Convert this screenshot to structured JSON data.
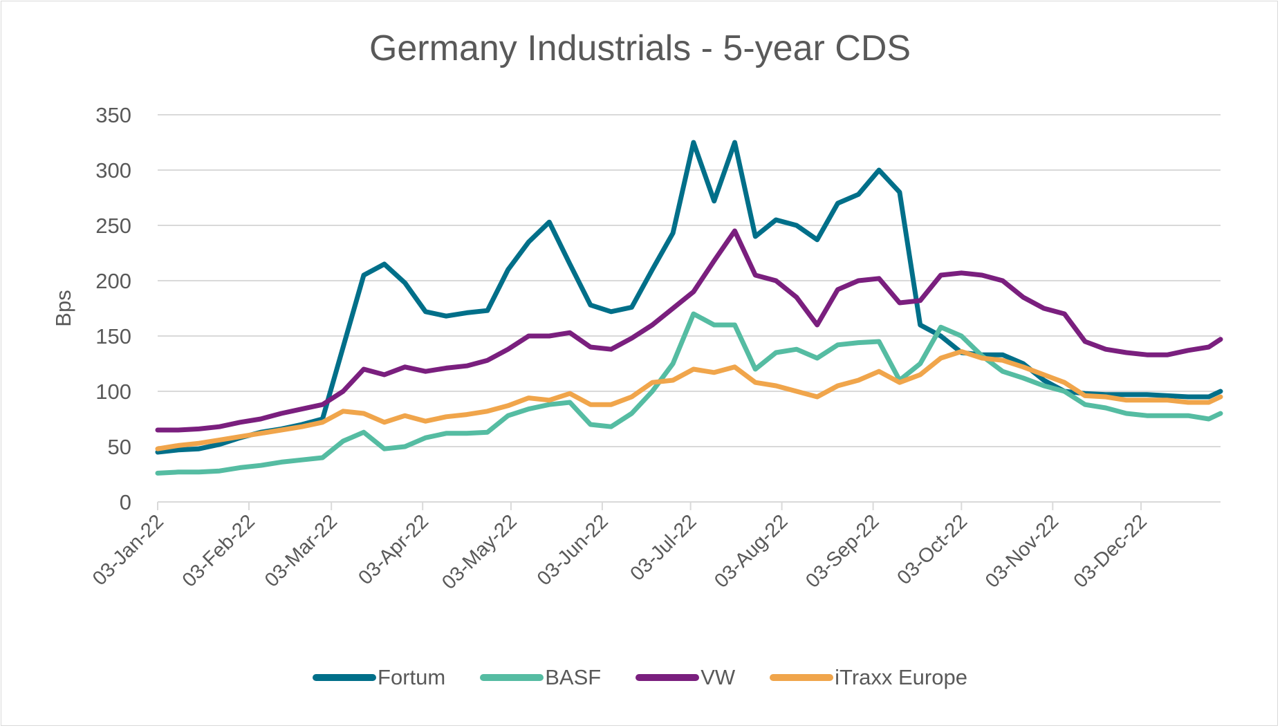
{
  "chart_data": {
    "type": "line",
    "title": "Germany Industrials - 5-year CDS",
    "xlabel": "",
    "ylabel": "Bps",
    "ylim": [
      0,
      350
    ],
    "yticks": [
      0,
      50,
      100,
      150,
      200,
      250,
      300,
      350
    ],
    "grid": true,
    "legend_position": "bottom",
    "xtick_labels": [
      "03-Jan-22",
      "03-Feb-22",
      "03-Mar-22",
      "03-Apr-22",
      "03-May-22",
      "03-Jun-22",
      "03-Jul-22",
      "03-Aug-22",
      "03-Sep-22",
      "03-Oct-22",
      "03-Nov-22",
      "03-Dec-22"
    ],
    "x": [
      "03-Jan-22",
      "10-Jan-22",
      "17-Jan-22",
      "24-Jan-22",
      "31-Jan-22",
      "07-Feb-22",
      "14-Feb-22",
      "21-Feb-22",
      "28-Feb-22",
      "07-Mar-22",
      "14-Mar-22",
      "21-Mar-22",
      "28-Mar-22",
      "04-Apr-22",
      "11-Apr-22",
      "18-Apr-22",
      "25-Apr-22",
      "02-May-22",
      "09-May-22",
      "16-May-22",
      "23-May-22",
      "30-May-22",
      "06-Jun-22",
      "13-Jun-22",
      "20-Jun-22",
      "27-Jun-22",
      "04-Jul-22",
      "11-Jul-22",
      "18-Jul-22",
      "25-Jul-22",
      "01-Aug-22",
      "08-Aug-22",
      "15-Aug-22",
      "22-Aug-22",
      "29-Aug-22",
      "05-Sep-22",
      "12-Sep-22",
      "19-Sep-22",
      "26-Sep-22",
      "03-Oct-22",
      "10-Oct-22",
      "17-Oct-22",
      "24-Oct-22",
      "31-Oct-22",
      "07-Nov-22",
      "14-Nov-22",
      "21-Nov-22",
      "28-Nov-22",
      "05-Dec-22",
      "12-Dec-22",
      "19-Dec-22",
      "26-Dec-22",
      "30-Dec-22"
    ],
    "series": [
      {
        "name": "Fortum",
        "color": "#006f89",
        "values": [
          45,
          47,
          48,
          52,
          58,
          63,
          66,
          70,
          75,
          140,
          205,
          215,
          198,
          172,
          168,
          171,
          173,
          210,
          235,
          253,
          215,
          178,
          172,
          176,
          210,
          243,
          325,
          272,
          325,
          240,
          255,
          250,
          237,
          270,
          278,
          300,
          280,
          160,
          150,
          135,
          133,
          133,
          125,
          110,
          100,
          98,
          97,
          97,
          97,
          96,
          95,
          95,
          100
        ]
      },
      {
        "name": "BASF",
        "color": "#55bca2",
        "values": [
          26,
          27,
          27,
          28,
          31,
          33,
          36,
          38,
          40,
          55,
          63,
          48,
          50,
          58,
          62,
          62,
          63,
          78,
          84,
          88,
          90,
          70,
          68,
          80,
          100,
          125,
          170,
          160,
          160,
          120,
          135,
          138,
          130,
          142,
          144,
          145,
          110,
          125,
          158,
          150,
          132,
          118,
          112,
          105,
          100,
          88,
          85,
          80,
          78,
          78,
          78,
          75,
          80
        ]
      },
      {
        "name": "VW",
        "color": "#7a1f7e",
        "values": [
          65,
          65,
          66,
          68,
          72,
          75,
          80,
          84,
          88,
          100,
          120,
          115,
          122,
          118,
          121,
          123,
          128,
          138,
          150,
          150,
          153,
          140,
          138,
          148,
          160,
          175,
          190,
          218,
          245,
          205,
          200,
          185,
          160,
          192,
          200,
          202,
          180,
          182,
          205,
          207,
          205,
          200,
          185,
          175,
          170,
          145,
          138,
          135,
          133,
          133,
          137,
          140,
          147
        ]
      },
      {
        "name": "iTraxx Europe",
        "color": "#f0a54b",
        "values": [
          48,
          51,
          53,
          56,
          59,
          62,
          65,
          68,
          72,
          82,
          80,
          72,
          78,
          73,
          77,
          79,
          82,
          87,
          94,
          92,
          98,
          88,
          88,
          95,
          108,
          110,
          120,
          117,
          122,
          108,
          105,
          100,
          95,
          105,
          110,
          118,
          108,
          115,
          130,
          136,
          130,
          128,
          122,
          115,
          108,
          96,
          95,
          92,
          92,
          92,
          90,
          90,
          95
        ]
      }
    ]
  }
}
